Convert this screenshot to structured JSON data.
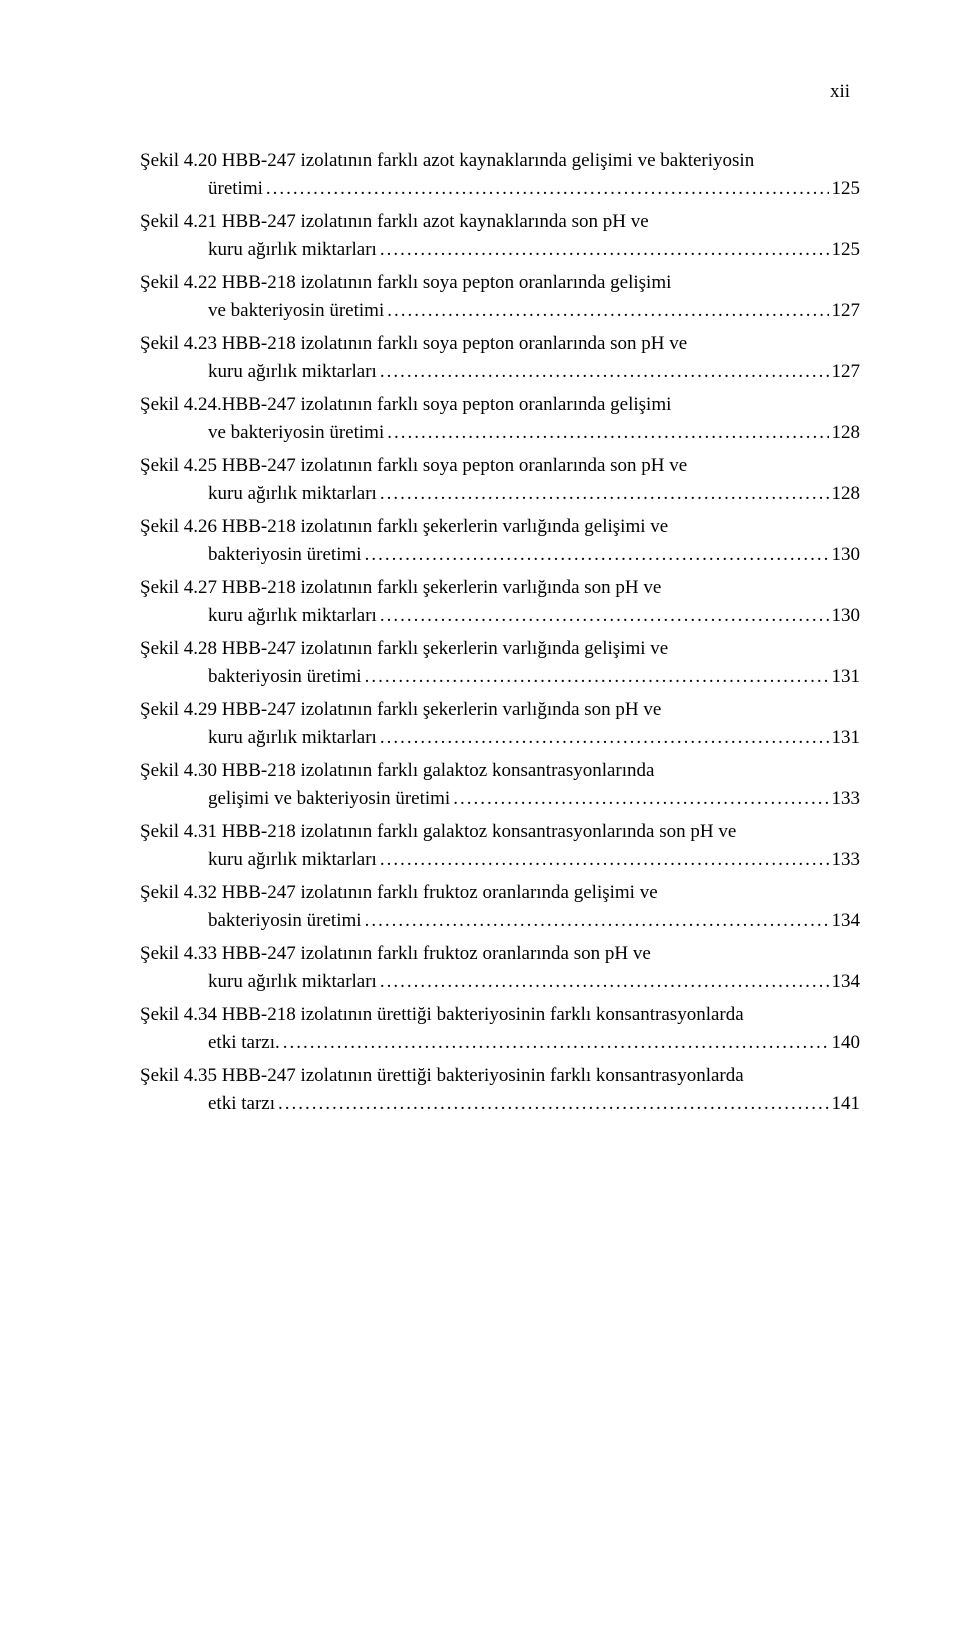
{
  "pageNumber": "xii",
  "entries": [
    {
      "lines": [
        {
          "text": "Şekil 4.20 HBB-247 izolatının farklı azot kaynaklarında gelişimi ve bakteriyosin",
          "indent": false
        },
        {
          "text": "üretimi",
          "indent": true,
          "page": "125"
        }
      ]
    },
    {
      "lines": [
        {
          "text": "Şekil 4.21 HBB-247 izolatının farklı azot kaynaklarında son pH ve",
          "indent": false
        },
        {
          "text": "kuru ağırlık miktarları",
          "indent": true,
          "page": "125"
        }
      ]
    },
    {
      "lines": [
        {
          "text": "Şekil 4.22 HBB-218 izolatının farklı soya pepton oranlarında gelişimi",
          "indent": false
        },
        {
          "text": "ve bakteriyosin üretimi",
          "indent": true,
          "page": "127"
        }
      ]
    },
    {
      "lines": [
        {
          "text": "Şekil 4.23 HBB-218 izolatının farklı soya pepton oranlarında son pH ve",
          "indent": false
        },
        {
          "text": "kuru ağırlık miktarları",
          "indent": true,
          "page": "127"
        }
      ]
    },
    {
      "lines": [
        {
          "text": "Şekil 4.24.HBB-247 izolatının farklı soya pepton oranlarında gelişimi",
          "indent": false
        },
        {
          "text": "ve bakteriyosin üretimi",
          "indent": true,
          "page": "128"
        }
      ]
    },
    {
      "lines": [
        {
          "text": "Şekil 4.25 HBB-247 izolatının farklı soya pepton oranlarında son pH ve",
          "indent": false
        },
        {
          "text": "kuru ağırlık miktarları",
          "indent": true,
          "page": "128"
        }
      ]
    },
    {
      "lines": [
        {
          "text": "Şekil 4.26 HBB-218 izolatının farklı şekerlerin varlığında gelişimi ve",
          "indent": false
        },
        {
          "text": "bakteriyosin üretimi",
          "indent": true,
          "page": "130"
        }
      ]
    },
    {
      "lines": [
        {
          "text": "Şekil 4.27 HBB-218 izolatının farklı şekerlerin varlığında son pH ve",
          "indent": false
        },
        {
          "text": "kuru ağırlık miktarları",
          "indent": true,
          "page": "130"
        }
      ]
    },
    {
      "lines": [
        {
          "text": "Şekil 4.28 HBB-247 izolatının farklı şekerlerin varlığında gelişimi ve",
          "indent": false
        },
        {
          "text": "bakteriyosin üretimi",
          "indent": true,
          "page": "131"
        }
      ]
    },
    {
      "lines": [
        {
          "text": "Şekil 4.29 HBB-247 izolatının farklı şekerlerin varlığında son pH ve",
          "indent": false
        },
        {
          "text": "kuru ağırlık miktarları",
          "indent": true,
          "page": "131"
        }
      ]
    },
    {
      "lines": [
        {
          "text": "Şekil 4.30 HBB-218 izolatının farklı galaktoz konsantrasyonlarında",
          "indent": false
        },
        {
          "text": "gelişimi ve bakteriyosin üretimi",
          "indent": true,
          "page": "133"
        }
      ]
    },
    {
      "lines": [
        {
          "text": "Şekil 4.31 HBB-218 izolatının farklı galaktoz konsantrasyonlarında son pH ve",
          "indent": false
        },
        {
          "text": "kuru ağırlık miktarları",
          "indent": true,
          "page": "133"
        }
      ]
    },
    {
      "lines": [
        {
          "text": "Şekil 4.32 HBB-247 izolatının farklı fruktoz oranlarında gelişimi ve",
          "indent": false
        },
        {
          "text": "bakteriyosin üretimi",
          "indent": true,
          "page": "134"
        }
      ]
    },
    {
      "lines": [
        {
          "text": "Şekil 4.33 HBB-247 izolatının farklı fruktoz oranlarında son pH ve",
          "indent": false
        },
        {
          "text": "kuru ağırlık miktarları",
          "indent": true,
          "page": "134"
        }
      ]
    },
    {
      "lines": [
        {
          "text": "Şekil 4.34 HBB-218 izolatının ürettiği bakteriyosinin farklı konsantrasyonlarda",
          "indent": false
        },
        {
          "text": "etki tarzı. ",
          "indent": true,
          "page": "140"
        }
      ]
    },
    {
      "lines": [
        {
          "text": "Şekil 4.35 HBB-247 izolatının ürettiği bakteriyosinin farklı konsantrasyonlarda",
          "indent": false
        },
        {
          "text": "etki tarzı",
          "indent": true,
          "page": "141"
        }
      ]
    }
  ]
}
